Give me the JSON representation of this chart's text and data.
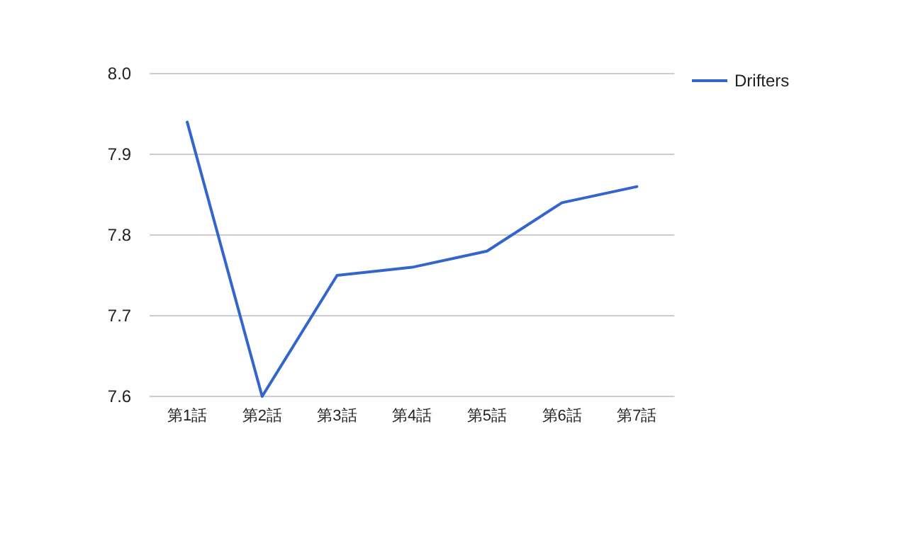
{
  "chart_data": {
    "type": "line",
    "categories": [
      "第1話",
      "第2話",
      "第3話",
      "第4話",
      "第5話",
      "第6話",
      "第7話"
    ],
    "series": [
      {
        "name": "Drifters",
        "color": "#3366cc",
        "values": [
          7.94,
          7.6,
          7.75,
          7.76,
          7.78,
          7.84,
          7.86
        ]
      }
    ],
    "ylim": [
      7.6,
      8.0
    ],
    "yticks": [
      7.6,
      7.7,
      7.8,
      7.9,
      {
        "value": 8,
        "label": "8.0"
      }
    ],
    "grid": "y",
    "legend": "right",
    "marker": "none"
  }
}
